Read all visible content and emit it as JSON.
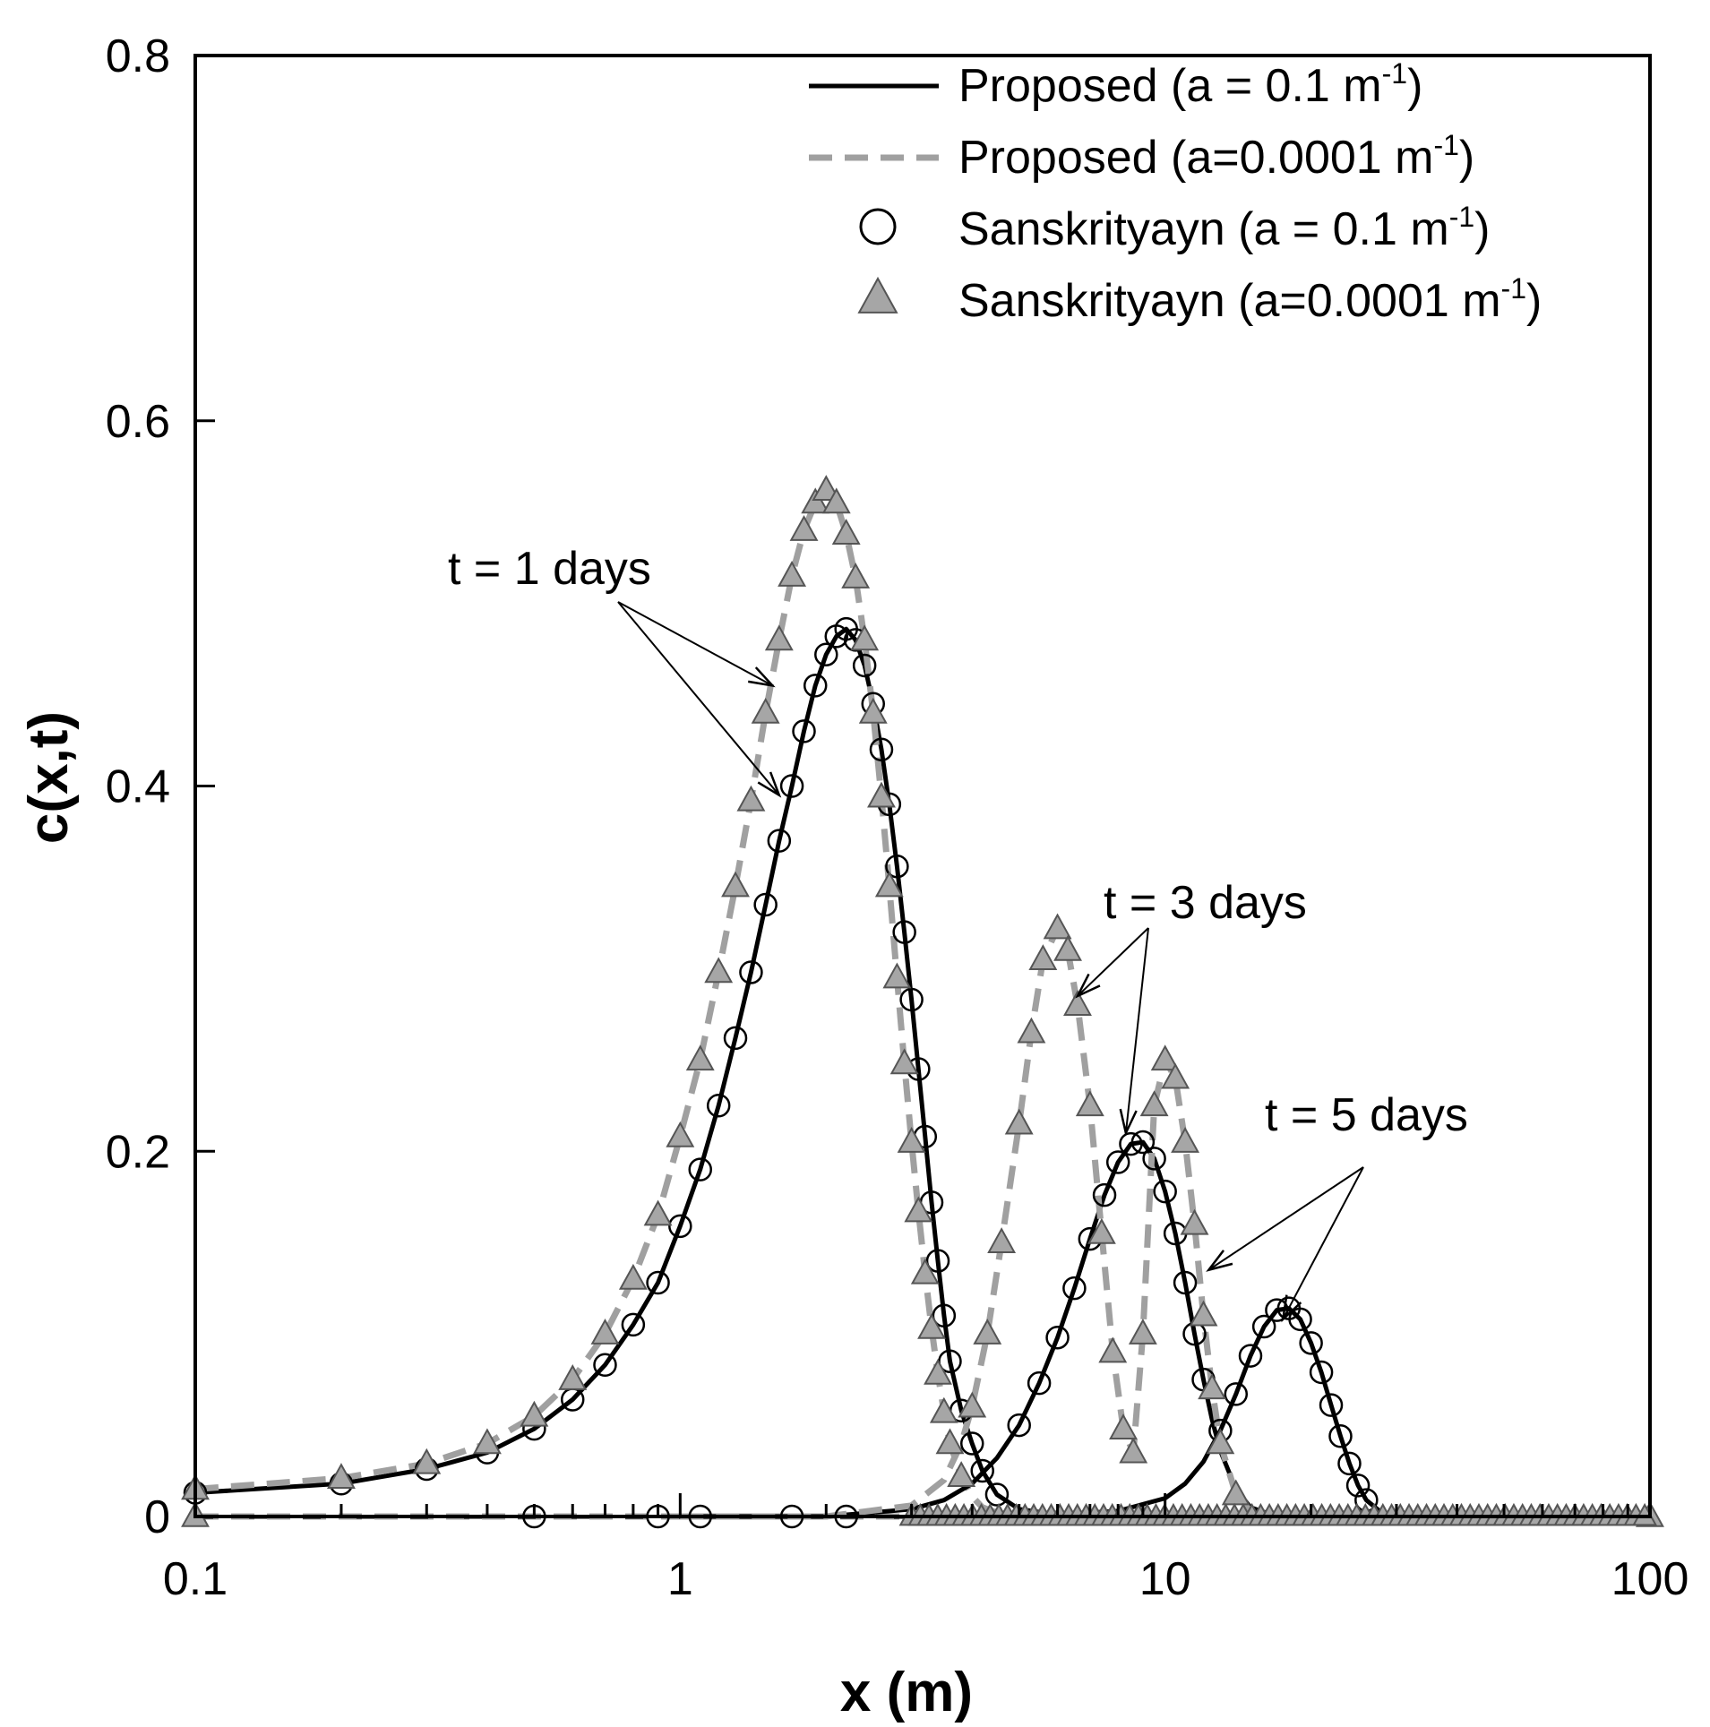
{
  "chart_data": {
    "type": "line",
    "title": "",
    "xlabel": "x (m)",
    "ylabel": "c(x,t)",
    "xscale": "log",
    "xlim": [
      0.1,
      100
    ],
    "ylim": [
      0,
      0.8
    ],
    "x_ticks": [
      0.1,
      1,
      10,
      100
    ],
    "x_tick_labels": [
      "0.1",
      "1",
      "10",
      "100"
    ],
    "y_ticks": [
      0,
      0.2,
      0.4,
      0.6,
      0.8
    ],
    "y_tick_labels": [
      "0",
      "0.2",
      "0.4",
      "0.6",
      "0.8"
    ],
    "grid": false,
    "legend_position": "top-right",
    "legend": [
      {
        "key": "prop_01",
        "base": "Proposed (a = 0.1 m",
        "sup": "-1",
        "tail": ")",
        "style": "solid-black-line"
      },
      {
        "key": "prop_00001",
        "base": "Proposed (a=0.0001 m",
        "sup": "-1",
        "tail": ")",
        "style": "dashed-gray-line"
      },
      {
        "key": "sans_01",
        "base": "Sanskrityayn (a = 0.1 m",
        "sup": "-1",
        "tail": ")",
        "style": "open-circle"
      },
      {
        "key": "sans_00001",
        "base": "Sanskrityayn (a=0.0001 m",
        "sup": "-1",
        "tail": ")",
        "style": "gray-triangle"
      }
    ],
    "colors": {
      "black": "#000000",
      "gray_line": "#a0a0a0",
      "triangle_fill": "#a6a6a6",
      "triangle_stroke": "#555555"
    },
    "series": [
      {
        "name": "Proposed (a = 0.1 m-1), t = 1 days",
        "style": "solid-black-line",
        "x": [
          0.1,
          0.2,
          0.3,
          0.4,
          0.5,
          0.6,
          0.7,
          0.8,
          0.9,
          1.0,
          1.1,
          1.2,
          1.3,
          1.4,
          1.5,
          1.6,
          1.7,
          1.8,
          1.9,
          2.0,
          2.1,
          2.2,
          2.3,
          2.4,
          2.5,
          2.6,
          2.7,
          2.8,
          2.9,
          3.0,
          3.1,
          3.2,
          3.3,
          3.4,
          3.5,
          3.6,
          3.8,
          4.0,
          4.2,
          4.5,
          5.0,
          6.0,
          8.0
        ],
        "y": [
          0.013,
          0.018,
          0.026,
          0.035,
          0.048,
          0.064,
          0.083,
          0.105,
          0.128,
          0.159,
          0.19,
          0.225,
          0.262,
          0.298,
          0.335,
          0.37,
          0.4,
          0.43,
          0.455,
          0.472,
          0.482,
          0.486,
          0.48,
          0.466,
          0.445,
          0.42,
          0.39,
          0.356,
          0.32,
          0.283,
          0.245,
          0.208,
          0.172,
          0.14,
          0.11,
          0.085,
          0.058,
          0.04,
          0.025,
          0.012,
          0.004,
          0.001,
          0.0
        ]
      },
      {
        "name": "Proposed (a=0.0001 m-1), t = 1 days",
        "style": "dashed-gray-line",
        "x": [
          0.1,
          0.2,
          0.3,
          0.4,
          0.5,
          0.6,
          0.7,
          0.8,
          0.9,
          1.0,
          1.1,
          1.2,
          1.3,
          1.4,
          1.5,
          1.6,
          1.7,
          1.8,
          1.9,
          2.0,
          2.1,
          2.2,
          2.3,
          2.4,
          2.5,
          2.6,
          2.7,
          2.8,
          2.9,
          3.0,
          3.1,
          3.2,
          3.3,
          3.4,
          3.5,
          3.6,
          3.8,
          4.0,
          4.2,
          4.5,
          5.0,
          6.0
        ],
        "y": [
          0.015,
          0.021,
          0.029,
          0.04,
          0.055,
          0.075,
          0.1,
          0.13,
          0.165,
          0.208,
          0.25,
          0.298,
          0.345,
          0.392,
          0.44,
          0.48,
          0.515,
          0.54,
          0.555,
          0.562,
          0.555,
          0.538,
          0.514,
          0.48,
          0.44,
          0.394,
          0.345,
          0.295,
          0.248,
          0.205,
          0.167,
          0.133,
          0.103,
          0.078,
          0.057,
          0.04,
          0.022,
          0.011,
          0.005,
          0.002,
          0.0005,
          0.0
        ]
      },
      {
        "name": "Proposed (a = 0.1 m-1), t = 3 days",
        "style": "solid-black-line",
        "x": [
          1.0,
          2.0,
          3.0,
          3.5,
          4.0,
          4.5,
          5.0,
          5.5,
          6.0,
          6.5,
          7.0,
          7.5,
          8.0,
          8.5,
          9.0,
          9.5,
          10.0,
          10.5,
          11.0,
          11.5,
          12.0,
          12.5,
          13.0,
          14.0,
          15.0,
          17.0
        ],
        "y": [
          0.0,
          0.0,
          0.004,
          0.009,
          0.018,
          0.032,
          0.05,
          0.073,
          0.098,
          0.125,
          0.152,
          0.176,
          0.194,
          0.204,
          0.205,
          0.196,
          0.178,
          0.155,
          0.128,
          0.1,
          0.075,
          0.053,
          0.036,
          0.015,
          0.005,
          0.0
        ]
      },
      {
        "name": "Proposed (a=0.0001 m-1), t = 3 days",
        "style": "dashed-gray-line",
        "x": [
          1.0,
          2.0,
          3.0,
          3.5,
          3.8,
          4.0,
          4.3,
          4.6,
          5.0,
          5.3,
          5.6,
          6.0,
          6.3,
          6.6,
          7.0,
          7.4,
          7.8,
          8.2,
          8.6,
          9.0,
          9.5,
          10.0,
          10.5,
          11.0,
          11.5,
          12.0,
          12.5,
          13.0,
          14.0,
          15.0
        ],
        "y": [
          0.0,
          0.0,
          0.006,
          0.02,
          0.04,
          0.06,
          0.1,
          0.15,
          0.215,
          0.265,
          0.305,
          0.322,
          0.31,
          0.28,
          0.225,
          0.155,
          0.09,
          0.048,
          0.035,
          0.1,
          0.225,
          0.25,
          0.24,
          0.205,
          0.16,
          0.11,
          0.07,
          0.04,
          0.012,
          0.003
        ]
      },
      {
        "name": "Proposed (a = 0.1 m-1), t = 5 days",
        "style": "solid-black-line",
        "x": [
          5.0,
          8.0,
          10.0,
          11.0,
          12.0,
          13.0,
          14.0,
          15.0,
          16.0,
          17.0,
          18.0,
          19.0,
          20.0,
          21.0,
          22.0,
          23.0,
          24.0,
          25.0,
          26.0,
          28.0,
          30.0,
          100.0
        ],
        "y": [
          0.0,
          0.003,
          0.01,
          0.018,
          0.03,
          0.047,
          0.067,
          0.088,
          0.104,
          0.113,
          0.114,
          0.108,
          0.095,
          0.079,
          0.061,
          0.044,
          0.029,
          0.017,
          0.009,
          0.002,
          0.0,
          0.0
        ]
      },
      {
        "name": "Sanskrityayn (a = 0.1 m-1)",
        "style": "open-circle",
        "x": [
          0.1,
          0.2,
          0.3,
          0.4,
          0.5,
          0.6,
          0.7,
          0.8,
          0.9,
          1.0,
          1.1,
          1.2,
          1.3,
          1.4,
          1.5,
          1.6,
          1.7,
          1.8,
          1.9,
          2.0,
          2.1,
          2.2,
          2.3,
          2.4,
          2.5,
          2.6,
          2.7,
          2.8,
          2.9,
          3.0,
          3.1,
          3.2,
          3.3,
          3.4,
          3.5,
          3.6,
          3.8,
          4.0,
          4.2,
          4.5,
          5.0,
          5.5,
          6.0,
          6.5,
          7.0,
          7.5,
          8.0,
          8.5,
          9.0,
          9.5,
          10.0,
          10.5,
          11.0,
          11.5,
          12.0,
          13.0,
          14.0,
          15.0,
          16.0,
          17.0,
          18.0,
          19.0,
          20.0,
          21.0,
          22.0,
          23.0,
          24.0,
          25.0,
          26.0,
          0.5,
          0.9,
          1.1,
          1.7,
          2.2
        ],
        "y": [
          0.013,
          0.018,
          0.026,
          0.035,
          0.048,
          0.064,
          0.083,
          0.105,
          0.128,
          0.159,
          0.19,
          0.225,
          0.262,
          0.298,
          0.335,
          0.37,
          0.4,
          0.43,
          0.455,
          0.472,
          0.482,
          0.486,
          0.48,
          0.466,
          0.445,
          0.42,
          0.39,
          0.356,
          0.32,
          0.283,
          0.245,
          0.208,
          0.172,
          0.14,
          0.11,
          0.085,
          0.058,
          0.04,
          0.025,
          0.012,
          0.05,
          0.073,
          0.098,
          0.125,
          0.152,
          0.176,
          0.194,
          0.204,
          0.205,
          0.196,
          0.178,
          0.155,
          0.128,
          0.1,
          0.075,
          0.047,
          0.067,
          0.088,
          0.104,
          0.113,
          0.114,
          0.108,
          0.095,
          0.079,
          0.061,
          0.044,
          0.029,
          0.017,
          0.009,
          0.0,
          0.0,
          0.0,
          0.0,
          0.0
        ]
      },
      {
        "name": "Sanskrityayn (a=0.0001 m-1)",
        "style": "gray-triangle",
        "x": [
          0.1,
          0.2,
          0.3,
          0.4,
          0.5,
          0.6,
          0.7,
          0.8,
          0.9,
          1.0,
          1.1,
          1.2,
          1.3,
          1.4,
          1.5,
          1.6,
          1.7,
          1.8,
          1.9,
          2.0,
          2.1,
          2.2,
          2.3,
          2.4,
          2.5,
          2.6,
          2.7,
          2.8,
          2.9,
          3.0,
          3.1,
          3.2,
          3.3,
          3.4,
          3.5,
          3.6,
          3.8,
          4.0,
          4.3,
          4.6,
          5.0,
          5.3,
          5.6,
          6.0,
          6.3,
          6.6,
          7.0,
          7.4,
          7.8,
          8.2,
          8.6,
          9.0,
          9.5,
          10.0,
          10.5,
          11.0,
          11.5,
          12.0,
          12.5,
          13.0,
          14.0,
          0.1,
          100.0
        ],
        "y": [
          0.015,
          0.021,
          0.029,
          0.04,
          0.055,
          0.075,
          0.1,
          0.13,
          0.165,
          0.208,
          0.25,
          0.298,
          0.345,
          0.392,
          0.44,
          0.48,
          0.515,
          0.54,
          0.555,
          0.562,
          0.555,
          0.538,
          0.514,
          0.48,
          0.44,
          0.394,
          0.345,
          0.295,
          0.248,
          0.205,
          0.167,
          0.133,
          0.103,
          0.078,
          0.057,
          0.04,
          0.022,
          0.06,
          0.1,
          0.15,
          0.215,
          0.265,
          0.305,
          0.322,
          0.31,
          0.28,
          0.225,
          0.155,
          0.09,
          0.048,
          0.035,
          0.1,
          0.225,
          0.25,
          0.24,
          0.205,
          0.16,
          0.11,
          0.07,
          0.04,
          0.012,
          0.0,
          0.0
        ]
      },
      {
        "name": "baseline-dense-triangles",
        "style": "gray-triangle-baseline",
        "x_from": 3.0,
        "x_to": 100.0,
        "y": 0.0
      }
    ],
    "annotations": [
      {
        "text": "t = 1 days",
        "targets": [
          [
            1.55,
            0.455
          ],
          [
            1.6,
            0.395
          ]
        ]
      },
      {
        "text": "t = 3 days",
        "targets": [
          [
            6.6,
            0.285
          ],
          [
            8.3,
            0.21
          ]
        ]
      },
      {
        "text": "t = 5 days",
        "targets": [
          [
            12.3,
            0.135
          ],
          [
            17.5,
            0.108
          ]
        ]
      }
    ]
  }
}
